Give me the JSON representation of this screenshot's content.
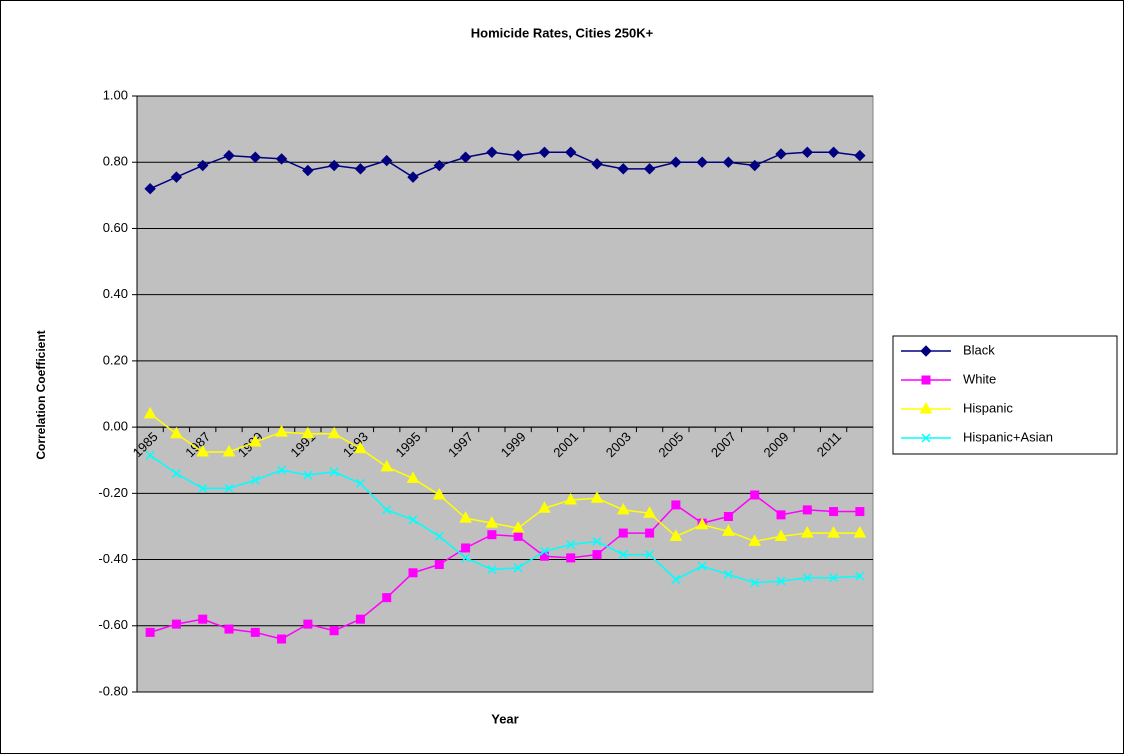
{
  "chart_data": {
    "type": "line",
    "title": "Homicide Rates, Cities 250K+",
    "x_label": "Year",
    "y_label": "Correlation Coefficient",
    "categories": [
      "1985",
      null,
      "1987",
      null,
      "1989",
      null,
      "1991",
      null,
      "1993",
      null,
      "1995",
      null,
      "1997",
      null,
      "1999",
      null,
      "2001",
      null,
      "2003",
      null,
      "2005",
      null,
      "2007",
      null,
      "2009",
      null,
      "2011",
      null
    ],
    "series": [
      {
        "name": "Black",
        "color": "#000080",
        "marker": "diamond",
        "values": [
          0.72,
          0.755,
          0.79,
          0.82,
          0.815,
          0.81,
          0.775,
          0.79,
          0.78,
          0.805,
          0.755,
          0.79,
          0.815,
          0.83,
          0.82,
          0.83,
          0.83,
          0.795,
          0.78,
          0.78,
          0.8,
          0.8,
          0.8,
          0.79,
          0.825,
          0.83,
          0.83,
          0.82
        ]
      },
      {
        "name": "White",
        "color": "#ff00ff",
        "marker": "square",
        "values": [
          -0.62,
          -0.595,
          -0.58,
          -0.61,
          -0.62,
          -0.64,
          -0.595,
          -0.615,
          -0.58,
          -0.515,
          -0.44,
          -0.415,
          -0.365,
          -0.325,
          -0.33,
          -0.39,
          -0.395,
          -0.385,
          -0.32,
          -0.32,
          -0.235,
          -0.29,
          -0.27,
          -0.205,
          -0.265,
          -0.25,
          -0.255,
          -0.255
        ]
      },
      {
        "name": "Hispanic",
        "color": "#ffff00",
        "marker": "triangle",
        "values": [
          0.04,
          -0.02,
          -0.075,
          -0.075,
          -0.045,
          -0.015,
          -0.02,
          -0.02,
          -0.065,
          -0.12,
          -0.155,
          -0.205,
          -0.275,
          -0.29,
          -0.305,
          -0.245,
          -0.22,
          -0.215,
          -0.25,
          -0.26,
          -0.33,
          -0.295,
          -0.315,
          -0.345,
          -0.33,
          -0.32,
          -0.32,
          -0.32
        ]
      },
      {
        "name": "Hispanic+Asian",
        "color": "#00ffff",
        "marker": "x",
        "values": [
          -0.085,
          -0.14,
          -0.185,
          -0.185,
          -0.16,
          -0.13,
          -0.145,
          -0.135,
          -0.17,
          -0.25,
          -0.28,
          -0.33,
          -0.395,
          -0.43,
          -0.425,
          -0.375,
          -0.355,
          -0.345,
          -0.385,
          -0.385,
          -0.46,
          -0.42,
          -0.445,
          -0.47,
          -0.465,
          -0.455,
          -0.455,
          -0.45
        ]
      }
    ],
    "ylim": [
      -0.8,
      1.0
    ],
    "yticks": [
      {
        "value": -0.8,
        "label": "-0.80"
      },
      {
        "value": -0.6,
        "label": "-0.60"
      },
      {
        "value": -0.4,
        "label": "-0.40"
      },
      {
        "value": -0.2,
        "label": "-0.20"
      },
      {
        "value": 0,
        "label": "0.00"
      },
      {
        "value": 0.2,
        "label": "0.20"
      },
      {
        "value": 0.4,
        "label": "0.40"
      },
      {
        "value": 0.6,
        "label": "0.60"
      },
      {
        "value": 0.8,
        "label": "0.80"
      },
      {
        "value": 1.0,
        "label": "1.00"
      }
    ],
    "grid": true,
    "legend": "right",
    "plot_background": "#c0c0c0"
  }
}
